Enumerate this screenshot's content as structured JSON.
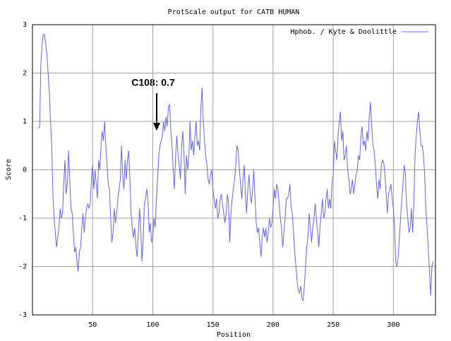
{
  "chart_data": {
    "type": "line",
    "title": "ProtScale output for CATB HUMAN",
    "xlabel": "Position",
    "ylabel": "Score",
    "annotation": "C108: 0.7",
    "xlim": [
      0,
      335
    ],
    "ylim": [
      -3,
      3
    ],
    "xticks": [
      50,
      100,
      150,
      200,
      250,
      300
    ],
    "yticks": [
      -3,
      -2,
      -1,
      0,
      1,
      2,
      3
    ],
    "grid": true,
    "legend": "top-right",
    "x": [
      5,
      6,
      7,
      8,
      9,
      10,
      11,
      12,
      13,
      14,
      15,
      16,
      17,
      18,
      19,
      20,
      21,
      22,
      23,
      24,
      25,
      26,
      27,
      28,
      29,
      30,
      31,
      32,
      33,
      34,
      35,
      36,
      37,
      38,
      39,
      40,
      41,
      42,
      43,
      44,
      45,
      46,
      47,
      48,
      49,
      50,
      51,
      52,
      53,
      54,
      55,
      56,
      57,
      58,
      59,
      60,
      61,
      62,
      63,
      64,
      65,
      66,
      67,
      68,
      69,
      70,
      71,
      72,
      73,
      74,
      75,
      76,
      77,
      78,
      79,
      80,
      81,
      82,
      83,
      84,
      85,
      86,
      87,
      88,
      89,
      90,
      91,
      92,
      93,
      94,
      95,
      96,
      97,
      98,
      99,
      100,
      101,
      102,
      103,
      104,
      105,
      106,
      107,
      108,
      109,
      110,
      111,
      112,
      113,
      114,
      115,
      116,
      117,
      118,
      119,
      120,
      121,
      122,
      123,
      124,
      125,
      126,
      127,
      128,
      129,
      130,
      131,
      132,
      133,
      134,
      135,
      136,
      137,
      138,
      139,
      140,
      141,
      142,
      143,
      144,
      145,
      146,
      147,
      148,
      149,
      150,
      151,
      152,
      153,
      154,
      155,
      156,
      157,
      158,
      159,
      160,
      161,
      162,
      163,
      164,
      165,
      166,
      167,
      168,
      169,
      170,
      171,
      172,
      173,
      174,
      175,
      176,
      177,
      178,
      179,
      180,
      181,
      182,
      183,
      184,
      185,
      186,
      187,
      188,
      189,
      190,
      191,
      192,
      193,
      194,
      195,
      196,
      197,
      198,
      199,
      200,
      201,
      202,
      203,
      204,
      205,
      206,
      207,
      208,
      209,
      210,
      211,
      212,
      213,
      214,
      215,
      216,
      217,
      218,
      219,
      220,
      221,
      222,
      223,
      224,
      225,
      226,
      227,
      228,
      229,
      230,
      231,
      232,
      233,
      234,
      235,
      236,
      237,
      238,
      239,
      240,
      241,
      242,
      243,
      244,
      245,
      246,
      247,
      248,
      249,
      250,
      251,
      252,
      253,
      254,
      255,
      256,
      257,
      258,
      259,
      260,
      261,
      262,
      263,
      264,
      265,
      266,
      267,
      268,
      269,
      270,
      271,
      272,
      273,
      274,
      275,
      276,
      277,
      278,
      279,
      280,
      281,
      282,
      283,
      284,
      285,
      286,
      287,
      288,
      289,
      290,
      291,
      292,
      293,
      294,
      295,
      296,
      297,
      298,
      299,
      300,
      301,
      302,
      303,
      304,
      305,
      306,
      307,
      308,
      309,
      310,
      311,
      312,
      313,
      314,
      315,
      316,
      317,
      318,
      319,
      320,
      321,
      322,
      323,
      324,
      325,
      326,
      327,
      328,
      329,
      330,
      331,
      332,
      333
    ],
    "series": [
      {
        "name": "Hphob. / Kyte & Doolittle",
        "color": "#6464f0",
        "values": [
          0.85,
          0.9,
          2.2,
          2.6,
          2.8,
          2.8,
          2.6,
          2.4,
          2.0,
          1.6,
          1.0,
          0.5,
          -0.5,
          -1.0,
          -1.3,
          -1.6,
          -1.4,
          -1.2,
          -0.8,
          -1.0,
          -0.9,
          -0.3,
          0.2,
          -0.5,
          -0.3,
          0.4,
          -0.2,
          -0.8,
          -0.9,
          -1.3,
          -1.7,
          -1.6,
          -1.9,
          -2.1,
          -1.7,
          -1.6,
          -1.2,
          -0.9,
          -1.3,
          -1.0,
          -0.8,
          -0.7,
          -0.8,
          -0.7,
          -0.2,
          0.1,
          -0.4,
          0.0,
          -0.3,
          -0.6,
          0.2,
          0.0,
          0.5,
          0.8,
          0.6,
          1.0,
          0.5,
          0.1,
          -0.3,
          -0.4,
          -1.0,
          -1.5,
          -1.3,
          -0.8,
          -1.1,
          -0.9,
          -0.6,
          -0.4,
          -0.2,
          0.5,
          -0.1,
          -0.4,
          0.2,
          -0.2,
          0.2,
          0.4,
          -0.2,
          -0.9,
          -1.2,
          -1.4,
          -1.2,
          -1.6,
          -1.8,
          -1.3,
          -0.8,
          -1.2,
          -1.9,
          -1.5,
          -0.7,
          -0.6,
          -0.4,
          -0.6,
          -1.3,
          -1.1,
          -1.5,
          -1.4,
          -1.0,
          -1.2,
          -0.6,
          -0.2,
          0.3,
          0.5,
          0.6,
          0.7,
          1.0,
          0.8,
          1.1,
          0.9,
          1.3,
          1.35,
          0.8,
          0.5,
          0.0,
          -0.4,
          0.3,
          0.7,
          0.3,
          0.1,
          -0.2,
          0.5,
          0.8,
          0.3,
          -0.5,
          0.3,
          0.0,
          0.3,
          1.0,
          0.4,
          0.6,
          0.3,
          0.7,
          1.0,
          0.5,
          0.6,
          0.4,
          1.3,
          1.7,
          1.0,
          0.6,
          0.3,
          0.1,
          -0.2,
          -0.3,
          -0.1,
          0.0,
          -0.4,
          -0.6,
          -0.8,
          -0.6,
          -1.0,
          -0.9,
          -0.6,
          -0.5,
          -0.7,
          -0.9,
          -1.1,
          -0.9,
          -0.5,
          -0.7,
          -1.5,
          -0.9,
          -0.6,
          -0.4,
          -0.2,
          0.1,
          0.5,
          0.4,
          0.0,
          -0.3,
          -0.6,
          -0.2,
          0.1,
          -0.5,
          -0.9,
          -0.4,
          -0.1,
          -0.5,
          -0.7,
          -0.4,
          0.0,
          -0.6,
          -1.1,
          -1.3,
          -1.2,
          -1.5,
          -1.8,
          -1.4,
          -1.2,
          -1.4,
          -1.2,
          -1.5,
          -1.3,
          -1.0,
          -1.2,
          -1.1,
          -0.8,
          -0.4,
          -0.6,
          -0.3,
          -0.4,
          -0.7,
          -1.0,
          -1.2,
          -1.6,
          -1.3,
          -1.0,
          -0.6,
          -0.6,
          -0.5,
          -0.3,
          -0.8,
          -0.9,
          -1.3,
          -1.7,
          -2.0,
          -2.3,
          -2.5,
          -2.55,
          -2.4,
          -2.65,
          -2.7,
          -2.4,
          -2.0,
          -1.6,
          -1.4,
          -0.9,
          -1.2,
          -1.5,
          -1.2,
          -1.0,
          -0.7,
          -1.0,
          -1.3,
          -1.6,
          -1.2,
          -0.9,
          -0.6,
          -1.0,
          -0.9,
          -0.6,
          -0.4,
          -0.8,
          -0.6,
          -0.8,
          -0.3,
          -0.1,
          0.6,
          0.4,
          0.2,
          0.7,
          1.0,
          1.2,
          0.6,
          0.8,
          0.2,
          0.3,
          0.5,
          0.0,
          -0.2,
          -0.5,
          -0.4,
          -0.2,
          -0.5,
          -0.3,
          -0.1,
          0.0,
          0.3,
          0.2,
          0.7,
          0.9,
          0.5,
          0.6,
          0.4,
          0.8,
          0.6,
          1.1,
          1.4,
          0.9,
          0.5,
          0.4,
          0.1,
          -0.3,
          -0.6,
          -0.2,
          -0.4,
          0.1,
          0.2,
          0.15,
          -0.1,
          -0.5,
          -0.9,
          -0.5,
          -0.4,
          -0.3,
          -0.6,
          -0.8,
          -1.2,
          -1.9,
          -2.0,
          -1.8,
          -1.4,
          -1.0,
          -0.6,
          -0.3,
          0.1,
          -0.1,
          -0.7,
          -1.0,
          -1.3,
          -1.2,
          -0.8,
          -1.3,
          -0.7,
          0.3,
          0.7,
          1.0,
          1.2,
          0.8,
          0.5,
          0.5,
          0.3,
          -0.1,
          -0.8,
          -1.2,
          -1.6,
          -2.1,
          -2.6,
          -2.0,
          -1.9
        ]
      }
    ]
  }
}
